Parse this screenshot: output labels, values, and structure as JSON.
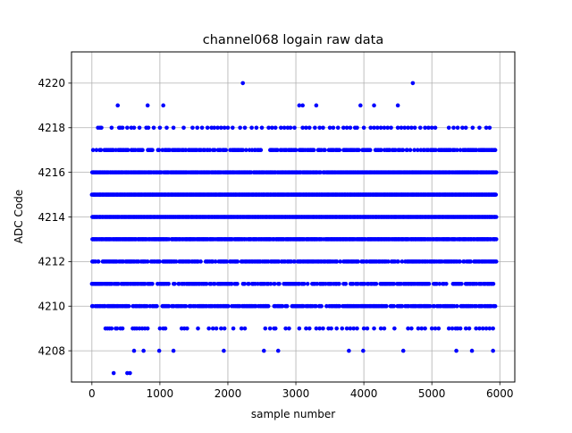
{
  "chart_data": {
    "type": "scatter",
    "title": "channel068 logain raw data",
    "xlabel": "sample number",
    "ylabel": "ADC Code",
    "xlim": [
      -300,
      6220
    ],
    "ylim": [
      4206.6,
      4221.4
    ],
    "xticks": [
      0,
      1000,
      2000,
      3000,
      4000,
      5000,
      6000
    ],
    "yticks": [
      4208,
      4210,
      4212,
      4214,
      4216,
      4218,
      4220
    ],
    "grid": true,
    "marker_color": "#0000ff",
    "levels": [
      {
        "y": 4220,
        "x": [
          2220,
          4720
        ]
      },
      {
        "y": 4219,
        "x": [
          380,
          820,
          1050,
          3050,
          3100,
          3300,
          3950,
          4150,
          4500
        ]
      },
      {
        "y": 4218,
        "x": [
          90,
          120,
          140,
          290,
          400,
          420,
          450,
          520,
          580,
          620,
          700,
          800,
          830,
          910,
          1000,
          1100,
          1200,
          1350,
          1480,
          1550,
          1620,
          1700,
          1760,
          1800,
          1850,
          1900,
          1950,
          2000,
          2070,
          2180,
          2250,
          2350,
          2420,
          2500,
          2600,
          2650,
          2700,
          2780,
          2830,
          2880,
          2920,
          2980,
          3100,
          3150,
          3200,
          3280,
          3350,
          3400,
          3500,
          3550,
          3620,
          3700,
          3750,
          3800,
          3870,
          3900,
          4000,
          4100,
          4150,
          4200,
          4250,
          4300,
          4350,
          4400,
          4500,
          4550,
          4600,
          4650,
          4700,
          4750,
          4830,
          4900,
          4950,
          5000,
          5050,
          5250,
          5320,
          5380,
          5450,
          5500,
          5600,
          5700,
          5800,
          5850
        ]
      },
      {
        "y": 4217,
        "dense": [
          [
            0,
            5950,
            0.55
          ]
        ]
      },
      {
        "y": 4216,
        "dense": [
          [
            0,
            5950,
            0.92
          ]
        ]
      },
      {
        "y": 4215,
        "dense": [
          [
            0,
            5950,
            1.0
          ]
        ]
      },
      {
        "y": 4214,
        "dense": [
          [
            0,
            5950,
            1.0
          ]
        ]
      },
      {
        "y": 4213,
        "dense": [
          [
            0,
            5950,
            0.9
          ]
        ]
      },
      {
        "y": 4212,
        "dense": [
          [
            0,
            5950,
            0.65
          ]
        ]
      },
      {
        "y": 4211,
        "dense": [
          [
            0,
            5950,
            0.55
          ]
        ]
      },
      {
        "y": 4210,
        "dense": [
          [
            0,
            5950,
            0.6
          ]
        ]
      },
      {
        "y": 4209,
        "x": [
          200,
          230,
          260,
          290,
          350,
          370,
          420,
          450,
          600,
          630,
          660,
          700,
          740,
          780,
          820,
          1000,
          1050,
          1080,
          1320,
          1360,
          1400,
          1560,
          1720,
          1780,
          1830,
          1900,
          1950,
          2080,
          2200,
          2250,
          2550,
          2620,
          2680,
          2700,
          2850,
          2900,
          3050,
          3150,
          3200,
          3300,
          3350,
          3400,
          3480,
          3520,
          3600,
          3680,
          3750,
          3800,
          3850,
          3900,
          4000,
          4050,
          4150,
          4250,
          4300,
          4450,
          4650,
          4700,
          4800,
          4850,
          4900,
          5000,
          5050,
          5100,
          5250,
          5300,
          5350,
          5380,
          5420,
          5500,
          5550,
          5650,
          5700,
          5750,
          5800,
          5850,
          5900
        ]
      },
      {
        "y": 4208,
        "x": [
          620,
          760,
          990,
          1200,
          1940,
          2530,
          2740,
          3780,
          3990,
          4580,
          5360,
          5590,
          5900
        ]
      },
      {
        "y": 4207,
        "x": [
          320,
          520,
          560
        ]
      }
    ]
  }
}
